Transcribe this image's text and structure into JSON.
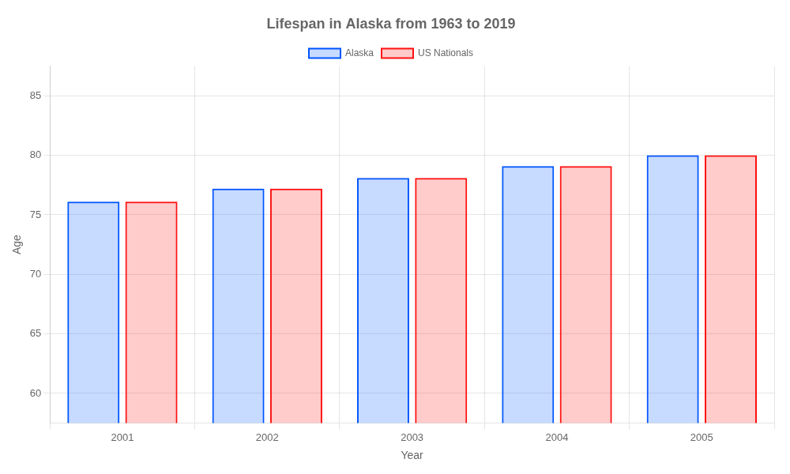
{
  "chart_data": {
    "type": "bar",
    "title": "Lifespan in Alaska from 1963 to 2019",
    "x_label": "Year",
    "y_label": "Age",
    "categories": [
      "2001",
      "2002",
      "2003",
      "2004",
      "2005"
    ],
    "series": [
      {
        "name": "Alaska",
        "color": "#0055ff",
        "values": [
          76.1,
          77.2,
          78.1,
          79.1,
          80.0
        ]
      },
      {
        "name": "US Nationals",
        "color": "#ff1111",
        "values": [
          76.1,
          77.2,
          78.1,
          79.1,
          80.0
        ]
      }
    ],
    "ylim": [
      57.5,
      87.5
    ],
    "yticks": [
      60,
      65,
      70,
      75,
      80,
      85
    ],
    "grid": true,
    "legend": "top"
  }
}
